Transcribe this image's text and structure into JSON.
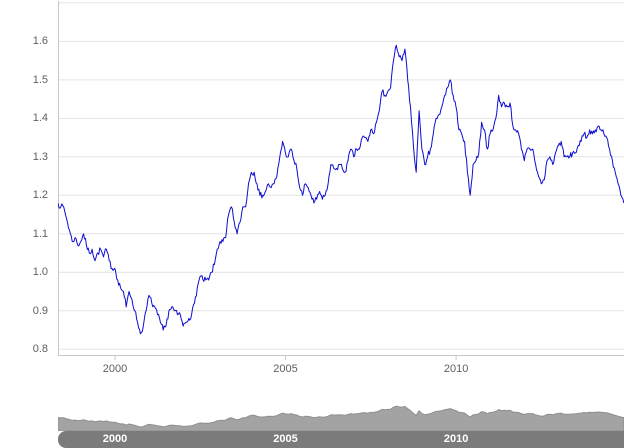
{
  "colors": {
    "background": "#ffffff",
    "line": "#0d0dd0",
    "gridline": "#e4e4e4",
    "axis_line": "#c9c9c9",
    "axis_label": "#5f5f5f",
    "navigator_fill": "#a3a3a3",
    "navigator_outline": "#8f8f8f",
    "scrollbar": "#7b7b7b",
    "navigator_label": "#ffffff"
  },
  "chart_data": {
    "type": "line",
    "title": "",
    "xlabel": "",
    "ylabel": "",
    "legend": "none",
    "grid": true,
    "xlim": [
      1998.33,
      2014.92
    ],
    "ylim": [
      0.785,
      1.705
    ],
    "x_start_decimal_year": 1998.33,
    "x_step_months": 1,
    "jitter_amplitude": 0.008,
    "jitter_seed": 7,
    "y_ticks": [
      {
        "value": 1.7,
        "label": ""
      },
      {
        "value": 1.6,
        "label": "1.6"
      },
      {
        "value": 1.5,
        "label": "1.5"
      },
      {
        "value": 1.4,
        "label": "1.4"
      },
      {
        "value": 1.3,
        "label": "1.3"
      },
      {
        "value": 1.2,
        "label": "1.2"
      },
      {
        "value": 1.1,
        "label": "1.1"
      },
      {
        "value": 1.0,
        "label": "1.0"
      },
      {
        "value": 0.9,
        "label": "0.9"
      },
      {
        "value": 0.8,
        "label": "0.8"
      }
    ],
    "x_ticks": [
      {
        "value": 2000,
        "label": "2000"
      },
      {
        "value": 2005,
        "label": "2005"
      },
      {
        "value": 2010,
        "label": "2010"
      }
    ],
    "navigator": {
      "labels": [
        "2000",
        "2005",
        "2010"
      ],
      "value_range": [
        0.7,
        1.7
      ]
    },
    "series": [
      {
        "name": "",
        "values": [
          1.18,
          1.17,
          1.17,
          1.14,
          1.11,
          1.08,
          1.09,
          1.07,
          1.08,
          1.1,
          1.07,
          1.05,
          1.06,
          1.03,
          1.05,
          1.06,
          1.04,
          1.06,
          1.03,
          1.01,
          1.01,
          0.98,
          0.96,
          0.95,
          0.91,
          0.95,
          0.93,
          0.9,
          0.87,
          0.84,
          0.86,
          0.9,
          0.94,
          0.92,
          0.91,
          0.89,
          0.87,
          0.85,
          0.86,
          0.9,
          0.91,
          0.9,
          0.89,
          0.89,
          0.86,
          0.87,
          0.88,
          0.89,
          0.92,
          0.96,
          0.99,
          0.98,
          0.98,
          0.98,
          1.0,
          1.02,
          1.06,
          1.08,
          1.08,
          1.09,
          1.15,
          1.17,
          1.13,
          1.1,
          1.13,
          1.17,
          1.17,
          1.23,
          1.26,
          1.26,
          1.23,
          1.2,
          1.2,
          1.21,
          1.23,
          1.22,
          1.23,
          1.25,
          1.3,
          1.34,
          1.31,
          1.3,
          1.32,
          1.29,
          1.27,
          1.22,
          1.2,
          1.23,
          1.22,
          1.2,
          1.18,
          1.19,
          1.21,
          1.19,
          1.2,
          1.23,
          1.28,
          1.27,
          1.27,
          1.28,
          1.27,
          1.26,
          1.29,
          1.32,
          1.3,
          1.32,
          1.32,
          1.35,
          1.35,
          1.34,
          1.37,
          1.36,
          1.39,
          1.42,
          1.47,
          1.46,
          1.47,
          1.48,
          1.55,
          1.59,
          1.56,
          1.55,
          1.58,
          1.5,
          1.43,
          1.33,
          1.26,
          1.42,
          1.32,
          1.28,
          1.3,
          1.32,
          1.36,
          1.4,
          1.41,
          1.43,
          1.46,
          1.48,
          1.5,
          1.46,
          1.43,
          1.37,
          1.36,
          1.34,
          1.26,
          1.2,
          1.28,
          1.29,
          1.31,
          1.39,
          1.37,
          1.32,
          1.36,
          1.37,
          1.4,
          1.46,
          1.43,
          1.44,
          1.43,
          1.44,
          1.38,
          1.37,
          1.36,
          1.32,
          1.29,
          1.32,
          1.32,
          1.32,
          1.28,
          1.25,
          1.23,
          1.24,
          1.29,
          1.3,
          1.28,
          1.31,
          1.33,
          1.34,
          1.3,
          1.3,
          1.3,
          1.31,
          1.31,
          1.33,
          1.34,
          1.36,
          1.35,
          1.37,
          1.36,
          1.37,
          1.38,
          1.37,
          1.36,
          1.35,
          1.32,
          1.29,
          1.26,
          1.23,
          1.2,
          1.18
        ]
      }
    ]
  }
}
